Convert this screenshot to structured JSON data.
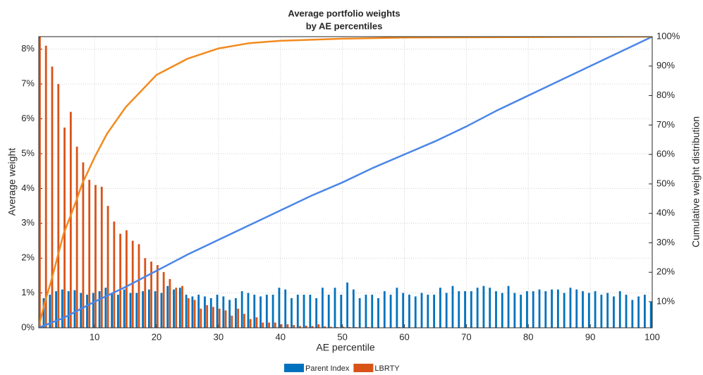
{
  "chart_data": {
    "type": "bar",
    "title": "Average portfolio weights",
    "subtitle": "by AE percentiles",
    "xlabel": "AE percentile",
    "ylabel": "Average weight",
    "y2label": "Cumulative weight distribution",
    "x": [
      1,
      2,
      3,
      4,
      5,
      6,
      7,
      8,
      9,
      10,
      11,
      12,
      13,
      14,
      15,
      16,
      17,
      18,
      19,
      20,
      21,
      22,
      23,
      24,
      25,
      26,
      27,
      28,
      29,
      30,
      31,
      32,
      33,
      34,
      35,
      36,
      37,
      38,
      39,
      40,
      41,
      42,
      43,
      44,
      45,
      46,
      47,
      48,
      49,
      50,
      51,
      52,
      53,
      54,
      55,
      56,
      57,
      58,
      59,
      60,
      61,
      62,
      63,
      64,
      65,
      66,
      67,
      68,
      69,
      70,
      71,
      72,
      73,
      74,
      75,
      76,
      77,
      78,
      79,
      80,
      81,
      82,
      83,
      84,
      85,
      86,
      87,
      88,
      89,
      90,
      91,
      92,
      93,
      94,
      95,
      96,
      97,
      98,
      99,
      100
    ],
    "series": [
      {
        "name": "Parent Index",
        "color": "#0072bd",
        "values": [
          0.75,
          0.85,
          0.95,
          1.05,
          1.1,
          1.05,
          1.08,
          1.0,
          0.95,
          1.0,
          1.05,
          1.15,
          1.0,
          0.95,
          1.1,
          1.0,
          1.0,
          1.05,
          1.1,
          1.05,
          1.0,
          1.2,
          1.1,
          1.15,
          0.95,
          0.9,
          0.95,
          0.9,
          0.85,
          0.95,
          0.9,
          0.8,
          0.85,
          1.05,
          1.0,
          0.95,
          0.9,
          0.95,
          0.95,
          1.15,
          1.1,
          0.85,
          0.95,
          0.95,
          0.95,
          0.85,
          1.15,
          0.95,
          1.15,
          0.95,
          1.3,
          1.1,
          0.85,
          0.95,
          0.95,
          0.85,
          1.05,
          0.95,
          1.15,
          1.0,
          0.95,
          0.9,
          1.0,
          0.95,
          0.95,
          1.15,
          1.0,
          1.2,
          1.05,
          1.05,
          1.05,
          1.15,
          1.2,
          1.15,
          1.05,
          1.0,
          1.2,
          1.0,
          0.95,
          1.05,
          1.05,
          1.1,
          1.05,
          1.1,
          1.1,
          1.0,
          1.15,
          1.1,
          1.05,
          1.0,
          1.05,
          0.95,
          1.0,
          0.9,
          1.05,
          0.95,
          0.8,
          0.9,
          0.95,
          0.75
        ]
      },
      {
        "name": "LBRTY",
        "color": "#d95319",
        "values": [
          8.36,
          8.1,
          7.5,
          7.0,
          5.75,
          6.2,
          5.2,
          4.75,
          4.25,
          4.1,
          4.05,
          3.5,
          3.05,
          2.7,
          2.8,
          2.5,
          2.4,
          2.0,
          1.9,
          1.8,
          1.6,
          1.4,
          1.15,
          1.2,
          0.85,
          0.8,
          0.55,
          0.65,
          0.6,
          0.55,
          0.5,
          0.35,
          0.55,
          0.4,
          0.25,
          0.3,
          0.15,
          0.15,
          0.15,
          0.1,
          0.1,
          0.08,
          0.05,
          0.06,
          0.05,
          0.1,
          0.04,
          0.03,
          0.02,
          0.03,
          0.02,
          0.02,
          0.01,
          0.02,
          0.01,
          0.01,
          0.01,
          0.01,
          0.02,
          0.01,
          0.01,
          0,
          0.01,
          0,
          0.01,
          0,
          0,
          0.01,
          0,
          0,
          0.01,
          0,
          0,
          0,
          0,
          0.01,
          0,
          0,
          0,
          0,
          0,
          0,
          0.01,
          0,
          0,
          0,
          0,
          0,
          0,
          0,
          0,
          0,
          0,
          0,
          0,
          0,
          0,
          0,
          0,
          0
        ]
      },
      {
        "type": "line",
        "axis": "y2",
        "color": "#4a86e8",
        "x": [
          1,
          5,
          10,
          15,
          20,
          25,
          30,
          35,
          40,
          45,
          50,
          55,
          60,
          65,
          70,
          75,
          80,
          85,
          90,
          95,
          100
        ],
        "values": [
          1.2,
          4.5,
          10,
          15,
          20.5,
          26,
          31,
          36,
          41,
          46,
          50.5,
          55.5,
          60,
          64.5,
          69.5,
          75,
          80,
          85,
          90,
          95,
          100
        ]
      },
      {
        "type": "line",
        "axis": "y2",
        "color": "#f28a1e",
        "x": [
          1,
          2,
          3,
          5,
          7,
          8,
          10,
          12,
          15,
          20,
          25,
          30,
          35,
          40,
          50,
          60,
          100
        ],
        "values": [
          1.5,
          10,
          17,
          33,
          44,
          50,
          59,
          67,
          76,
          87,
          92.5,
          96,
          97.8,
          98.6,
          99.3,
          99.7,
          100
        ]
      }
    ],
    "xlim": [
      1,
      100
    ],
    "xticks": [
      10,
      20,
      30,
      40,
      50,
      60,
      70,
      80,
      90,
      100
    ],
    "ylim": [
      0,
      8.36
    ],
    "yticks": [
      {
        "value": 0,
        "label": "0%"
      },
      {
        "value": 1,
        "label": "1%"
      },
      {
        "value": 2,
        "label": "2%"
      },
      {
        "value": 3,
        "label": "3%"
      },
      {
        "value": 4,
        "label": "4%"
      },
      {
        "value": 5,
        "label": "5%"
      },
      {
        "value": 6,
        "label": "6%"
      },
      {
        "value": 7,
        "label": "7%"
      },
      {
        "value": 8,
        "label": "8%"
      }
    ],
    "y2lim": [
      1.15,
      100
    ],
    "y2ticks": [
      {
        "value": 10,
        "label": "10%"
      },
      {
        "value": 20,
        "label": "20%"
      },
      {
        "value": 30,
        "label": "30%"
      },
      {
        "value": 40,
        "label": "40%"
      },
      {
        "value": 50,
        "label": "50%"
      },
      {
        "value": 60,
        "label": "60%"
      },
      {
        "value": 70,
        "label": "70%"
      },
      {
        "value": 80,
        "label": "80%"
      },
      {
        "value": 90,
        "label": "90%"
      },
      {
        "value": 100,
        "label": "100%"
      }
    ],
    "grid": true,
    "legend": "bottom"
  }
}
